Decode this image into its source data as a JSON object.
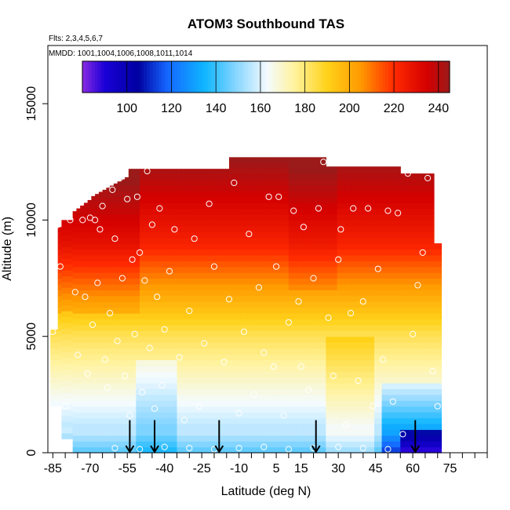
{
  "chart_data": {
    "type": "heatmap",
    "title": "ATOM3 Southbound TAS",
    "subtitle_flights": "Flts: 2,3,4,5,6,7",
    "subtitle_dates": "MMDD: 1001,1004,1006,1008,1011,1014",
    "xlabel": "Latitude (deg N)",
    "ylabel": "Altitude (m)",
    "xlim": [
      -87,
      90
    ],
    "ylim": [
      0,
      17500
    ],
    "xticks": [
      -85,
      -70,
      -55,
      -40,
      -25,
      -10,
      5,
      15,
      30,
      45,
      60,
      75
    ],
    "x_minor_step": 5,
    "yticks": [
      0,
      5000,
      10000,
      15000
    ],
    "colorbar": {
      "range": [
        80,
        245
      ],
      "ticks": [
        100,
        120,
        140,
        160,
        180,
        200,
        220,
        240
      ],
      "stops": [
        {
          "v": 80,
          "c": "#8a2be2"
        },
        {
          "v": 90,
          "c": "#1a00d8"
        },
        {
          "v": 105,
          "c": "#0000a0"
        },
        {
          "v": 118,
          "c": "#1565ff"
        },
        {
          "v": 135,
          "c": "#0fb6ff"
        },
        {
          "v": 150,
          "c": "#8fd8ff"
        },
        {
          "v": 163,
          "c": "#f4fbff"
        },
        {
          "v": 175,
          "c": "#fff3a0"
        },
        {
          "v": 190,
          "c": "#ffd21a"
        },
        {
          "v": 205,
          "c": "#ff9a00"
        },
        {
          "v": 220,
          "c": "#ff2a00"
        },
        {
          "v": 235,
          "c": "#d40000"
        },
        {
          "v": 245,
          "c": "#9b1a1a"
        }
      ]
    },
    "profile_arrows_lat": [
      -54,
      -44,
      -18,
      21,
      61
    ],
    "sample_points": [
      [
        -85,
        5200
      ],
      [
        -83,
        9800
      ],
      [
        -82,
        8000
      ],
      [
        -80,
        2000
      ],
      [
        -78,
        10000
      ],
      [
        -76,
        6900
      ],
      [
        -75,
        4200
      ],
      [
        -73,
        10000
      ],
      [
        -72,
        6700
      ],
      [
        -71,
        3400
      ],
      [
        -70,
        10100
      ],
      [
        -69,
        5500
      ],
      [
        -68,
        10000
      ],
      [
        -67,
        7300
      ],
      [
        -66,
        9600
      ],
      [
        -65,
        10600
      ],
      [
        -64,
        4000
      ],
      [
        -63,
        2800
      ],
      [
        -62,
        6000
      ],
      [
        -61,
        11300
      ],
      [
        -60,
        9200
      ],
      [
        -59,
        4800
      ],
      [
        -58,
        11800
      ],
      [
        -57,
        7500
      ],
      [
        -56,
        3300
      ],
      [
        -55,
        10900
      ],
      [
        -54,
        1600
      ],
      [
        -53,
        8300
      ],
      [
        -52,
        5100
      ],
      [
        -51,
        11000
      ],
      [
        -50,
        8600
      ],
      [
        -49,
        2600
      ],
      [
        -48,
        7400
      ],
      [
        -47,
        12100
      ],
      [
        -46,
        4500
      ],
      [
        -45,
        9800
      ],
      [
        -44,
        1900
      ],
      [
        -43,
        6700
      ],
      [
        -42,
        10500
      ],
      [
        -41,
        2900
      ],
      [
        -40,
        5300
      ],
      [
        -38,
        7800
      ],
      [
        -36,
        9600
      ],
      [
        -34,
        4100
      ],
      [
        -32,
        1400
      ],
      [
        -30,
        6100
      ],
      [
        -28,
        9200
      ],
      [
        -26,
        2000
      ],
      [
        -24,
        4700
      ],
      [
        -22,
        10700
      ],
      [
        -20,
        8000
      ],
      [
        -18,
        12500
      ],
      [
        -16,
        3900
      ],
      [
        -14,
        6600
      ],
      [
        -12,
        11600
      ],
      [
        -10,
        1700
      ],
      [
        -8,
        5200
      ],
      [
        -6,
        9400
      ],
      [
        -4,
        2500
      ],
      [
        -2,
        7100
      ],
      [
        0,
        4300
      ],
      [
        2,
        11000
      ],
      [
        4,
        3700
      ],
      [
        5,
        8000
      ],
      [
        6,
        11000
      ],
      [
        8,
        1600
      ],
      [
        10,
        5600
      ],
      [
        12,
        10400
      ],
      [
        14,
        6500
      ],
      [
        15,
        3700
      ],
      [
        16,
        9700
      ],
      [
        18,
        2700
      ],
      [
        20,
        7500
      ],
      [
        22,
        10500
      ],
      [
        24,
        12500
      ],
      [
        26,
        5800
      ],
      [
        28,
        3300
      ],
      [
        30,
        8300
      ],
      [
        31,
        9600
      ],
      [
        33,
        1200
      ],
      [
        35,
        6000
      ],
      [
        36,
        10500
      ],
      [
        38,
        3100
      ],
      [
        40,
        6500
      ],
      [
        42,
        10500
      ],
      [
        44,
        2000
      ],
      [
        46,
        7900
      ],
      [
        48,
        4000
      ],
      [
        50,
        10400
      ],
      [
        52,
        2200
      ],
      [
        54,
        10300
      ],
      [
        56,
        800
      ],
      [
        58,
        12000
      ],
      [
        60,
        5100
      ],
      [
        62,
        7200
      ],
      [
        64,
        8600
      ],
      [
        66,
        11800
      ],
      [
        68,
        3500
      ],
      [
        70,
        2000
      ],
      [
        -60,
        200
      ],
      [
        -50,
        150
      ],
      [
        -40,
        250
      ],
      [
        -30,
        200
      ],
      [
        -20,
        150
      ],
      [
        -10,
        200
      ],
      [
        0,
        250
      ],
      [
        10,
        150
      ],
      [
        20,
        200
      ],
      [
        30,
        250
      ],
      [
        40,
        200
      ],
      [
        50,
        150
      ]
    ]
  }
}
